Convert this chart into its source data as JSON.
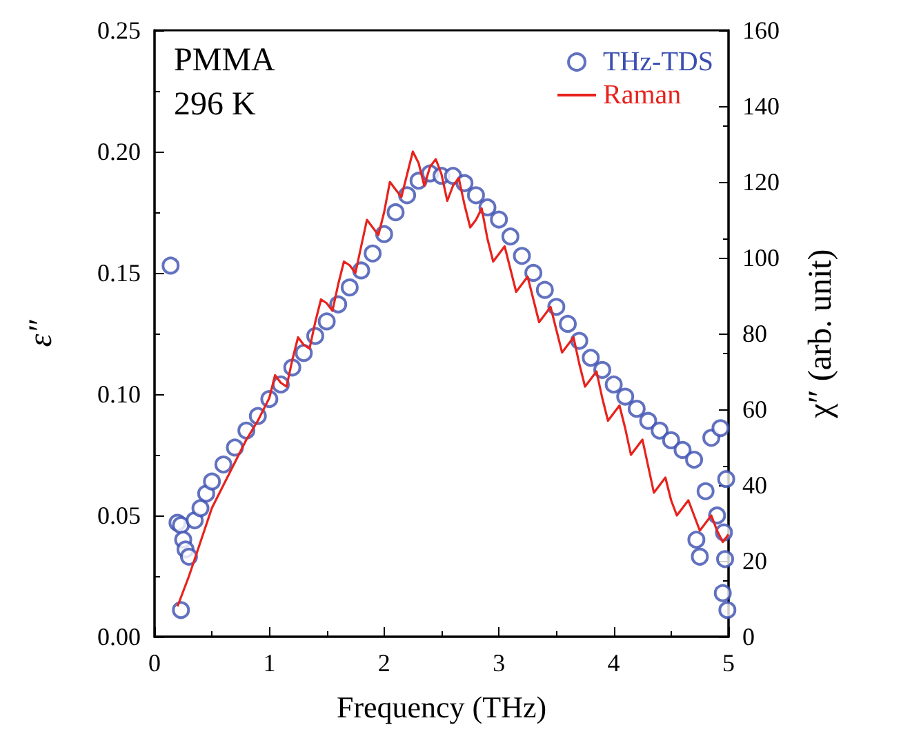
{
  "chart_data": {
    "type": "scatter",
    "xlabel": "Frequency (THz)",
    "ylabel": "ε″",
    "y2label": "χ″ (arb. unit)",
    "annotations": [
      "PMMA",
      "296 K"
    ],
    "xlim": [
      0,
      5
    ],
    "xticks": [
      0,
      1,
      2,
      3,
      4,
      5
    ],
    "ylim": [
      0,
      0.25
    ],
    "yticks": [
      {
        "value": 0,
        "label": "0.00"
      },
      0.05,
      {
        "value": 0.1,
        "label": "0.10"
      },
      0.15,
      {
        "value": 0.2,
        "label": "0.20"
      },
      0.25
    ],
    "y2lim": [
      0,
      160
    ],
    "y2ticks": [
      0,
      20,
      40,
      60,
      80,
      100,
      120,
      140,
      160
    ],
    "legend": "top right",
    "grid": false,
    "series": [
      {
        "name": "THz-TDS",
        "marker": "circle",
        "color": "#3b4fb0",
        "x": [
          0.14,
          0.2,
          0.23,
          0.25,
          0.27,
          0.3,
          0.23,
          0.35,
          0.4,
          0.45,
          0.5,
          0.6,
          0.7,
          0.8,
          0.9,
          1.0,
          1.1,
          1.2,
          1.3,
          1.4,
          1.5,
          1.6,
          1.7,
          1.8,
          1.9,
          2.0,
          2.1,
          2.2,
          2.3,
          2.4,
          2.5,
          2.6,
          2.7,
          2.8,
          2.9,
          3.0,
          3.1,
          3.2,
          3.3,
          3.4,
          3.5,
          3.6,
          3.7,
          3.8,
          3.9,
          4.0,
          4.1,
          4.2,
          4.3,
          4.4,
          4.5,
          4.6,
          4.7,
          4.72,
          4.75,
          4.8,
          4.85,
          4.9,
          4.95,
          4.98,
          4.93,
          4.96,
          4.97,
          4.99
        ],
        "values": [
          0.153,
          0.047,
          0.046,
          0.04,
          0.036,
          0.033,
          0.011,
          0.048,
          0.053,
          0.059,
          0.064,
          0.071,
          0.078,
          0.085,
          0.091,
          0.098,
          0.104,
          0.111,
          0.117,
          0.124,
          0.13,
          0.137,
          0.144,
          0.151,
          0.158,
          0.166,
          0.175,
          0.182,
          0.188,
          0.191,
          0.19,
          0.19,
          0.187,
          0.182,
          0.177,
          0.172,
          0.165,
          0.157,
          0.15,
          0.143,
          0.136,
          0.129,
          0.122,
          0.115,
          0.11,
          0.104,
          0.099,
          0.094,
          0.089,
          0.085,
          0.081,
          0.077,
          0.073,
          0.04,
          0.033,
          0.06,
          0.082,
          0.05,
          0.018,
          0.065,
          0.086,
          0.043,
          0.032,
          0.011
        ]
      },
      {
        "name": "Raman",
        "type": "line",
        "marker": "none",
        "line_style": "solid",
        "axis": "y2",
        "color": "#e8221c",
        "x": [
          0.2,
          0.3,
          0.4,
          0.5,
          0.6,
          0.7,
          0.8,
          0.9,
          1.0,
          1.05,
          1.1,
          1.15,
          1.2,
          1.25,
          1.3,
          1.35,
          1.4,
          1.45,
          1.5,
          1.55,
          1.6,
          1.65,
          1.7,
          1.75,
          1.8,
          1.85,
          1.9,
          1.95,
          2.0,
          2.05,
          2.1,
          2.15,
          2.2,
          2.25,
          2.3,
          2.35,
          2.4,
          2.45,
          2.5,
          2.55,
          2.6,
          2.65,
          2.7,
          2.75,
          2.8,
          2.85,
          2.9,
          2.95,
          3.0,
          3.05,
          3.1,
          3.15,
          3.2,
          3.25,
          3.3,
          3.35,
          3.4,
          3.45,
          3.5,
          3.55,
          3.6,
          3.65,
          3.7,
          3.75,
          3.8,
          3.85,
          3.9,
          3.95,
          4.0,
          4.05,
          4.1,
          4.15,
          4.2,
          4.25,
          4.3,
          4.35,
          4.4,
          4.45,
          4.5,
          4.55,
          4.6,
          4.65,
          4.7,
          4.75,
          4.8,
          4.85,
          4.9,
          4.95,
          5.0
        ],
        "values": [
          8,
          16,
          25,
          34,
          40,
          46,
          52,
          57,
          63,
          69,
          67,
          66,
          73,
          79,
          77,
          76,
          83,
          89,
          88,
          86,
          93,
          99,
          98,
          96,
          103,
          110,
          108,
          106,
          112,
          120,
          118,
          116,
          122,
          128,
          125,
          119,
          124,
          126,
          122,
          115,
          119,
          121,
          114,
          108,
          110,
          113,
          105,
          99,
          101,
          103,
          97,
          91,
          93,
          95,
          89,
          83,
          85,
          87,
          81,
          75,
          77,
          79,
          72,
          66,
          68,
          70,
          63,
          57,
          59,
          61,
          55,
          48,
          50,
          52,
          45,
          38,
          40,
          42,
          36,
          32,
          34,
          36,
          32,
          28,
          30,
          32,
          28,
          25,
          27
        ]
      }
    ]
  }
}
